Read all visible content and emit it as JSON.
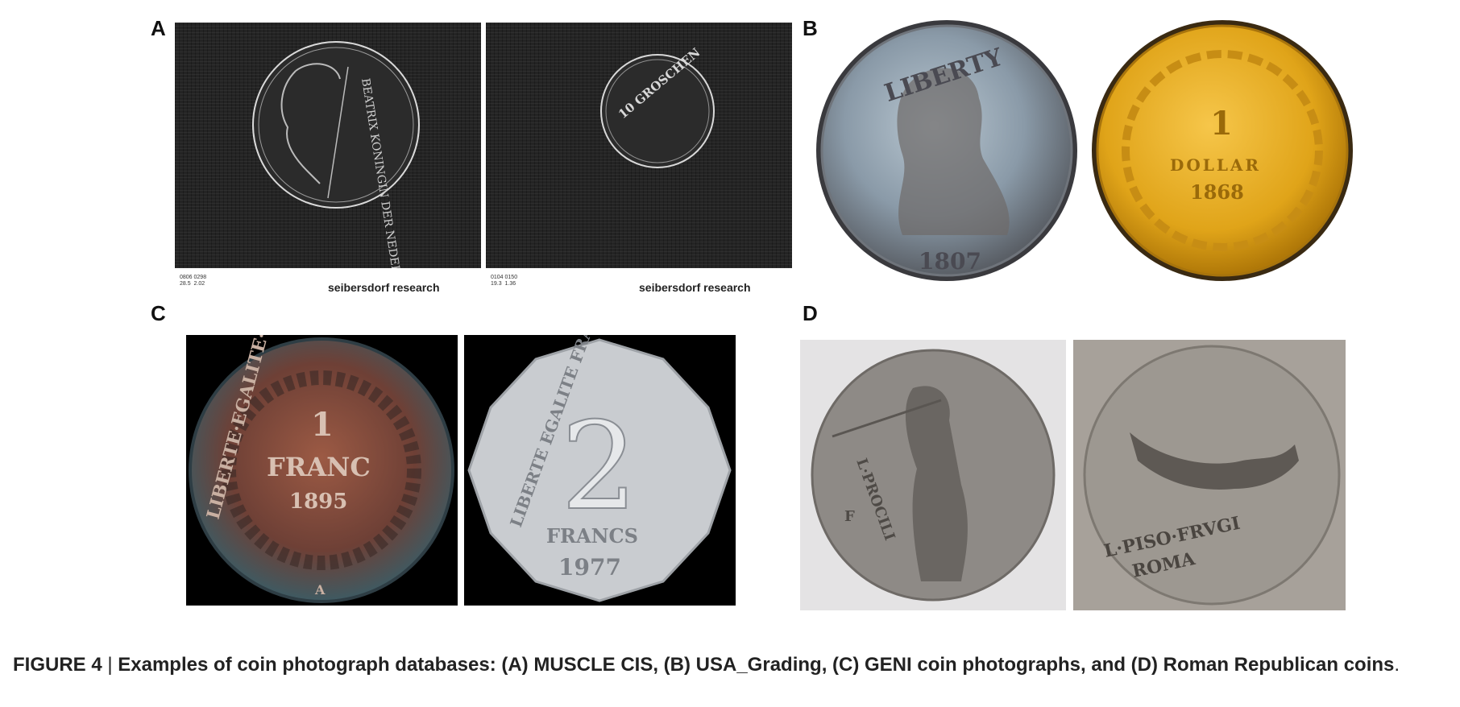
{
  "panels": {
    "a": {
      "letter": "A",
      "left": {
        "coin_inscription": "BEATRIX KONINGIN DER NEDERLANDEN",
        "meta_lines": "0806 0298\n28.5  2.02",
        "brand": "seibersdorf research"
      },
      "right": {
        "coin_inscription": "10 GROSCHEN",
        "meta_lines": "0104 0150\n19.3  1.36",
        "brand": "seibersdorf research"
      }
    },
    "b": {
      "letter": "B",
      "left_coin": {
        "top": "LIBERTY",
        "year": "1807"
      },
      "right_coin": {
        "denomination": "1",
        "unit": "DOLLAR",
        "year": "1868"
      }
    },
    "c": {
      "letter": "C",
      "left_coin": {
        "legend": "LIBERTE·EGALITE·FRATERNITE",
        "denomination": "1",
        "unit": "FRANC",
        "year": "1895",
        "mint": "A"
      },
      "right_coin": {
        "legend": "LIBERTE EGALITE FRATERNITE",
        "denomination": "2",
        "unit": "FRANCS",
        "year": "1977"
      }
    },
    "d": {
      "letter": "D",
      "left_coin": {
        "inscription": "L·PROCILI",
        "mark": "F"
      },
      "right_coin": {
        "inscription": "L·PISO·FRVGI",
        "city": "ROMA"
      }
    }
  },
  "caption": {
    "label": "FIGURE 4",
    "separator": " | ",
    "text": "Examples of coin photograph databases: (A) MUSCLE CIS, (B) USA_Grading, (C) GENI coin photographs, and (D) Roman Republican coins",
    "end": "."
  },
  "colors": {
    "scan_bg": "#242424",
    "silver": "#9a9aa0",
    "gold": "#e0a419",
    "copper": "#8b4a3a",
    "roman_bg": "#e4e3e4"
  }
}
